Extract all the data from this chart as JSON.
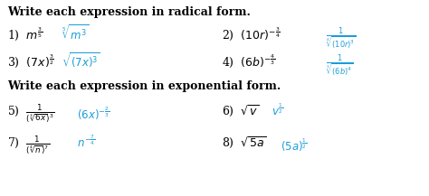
{
  "title1": "Write each expression in radical form.",
  "title2": "Write each expression in exponential form.",
  "background": "#ffffff",
  "text_color": "#000000",
  "answer_color": "#1a9cd8",
  "figsize": [
    4.74,
    2.17
  ],
  "dpi": 100
}
